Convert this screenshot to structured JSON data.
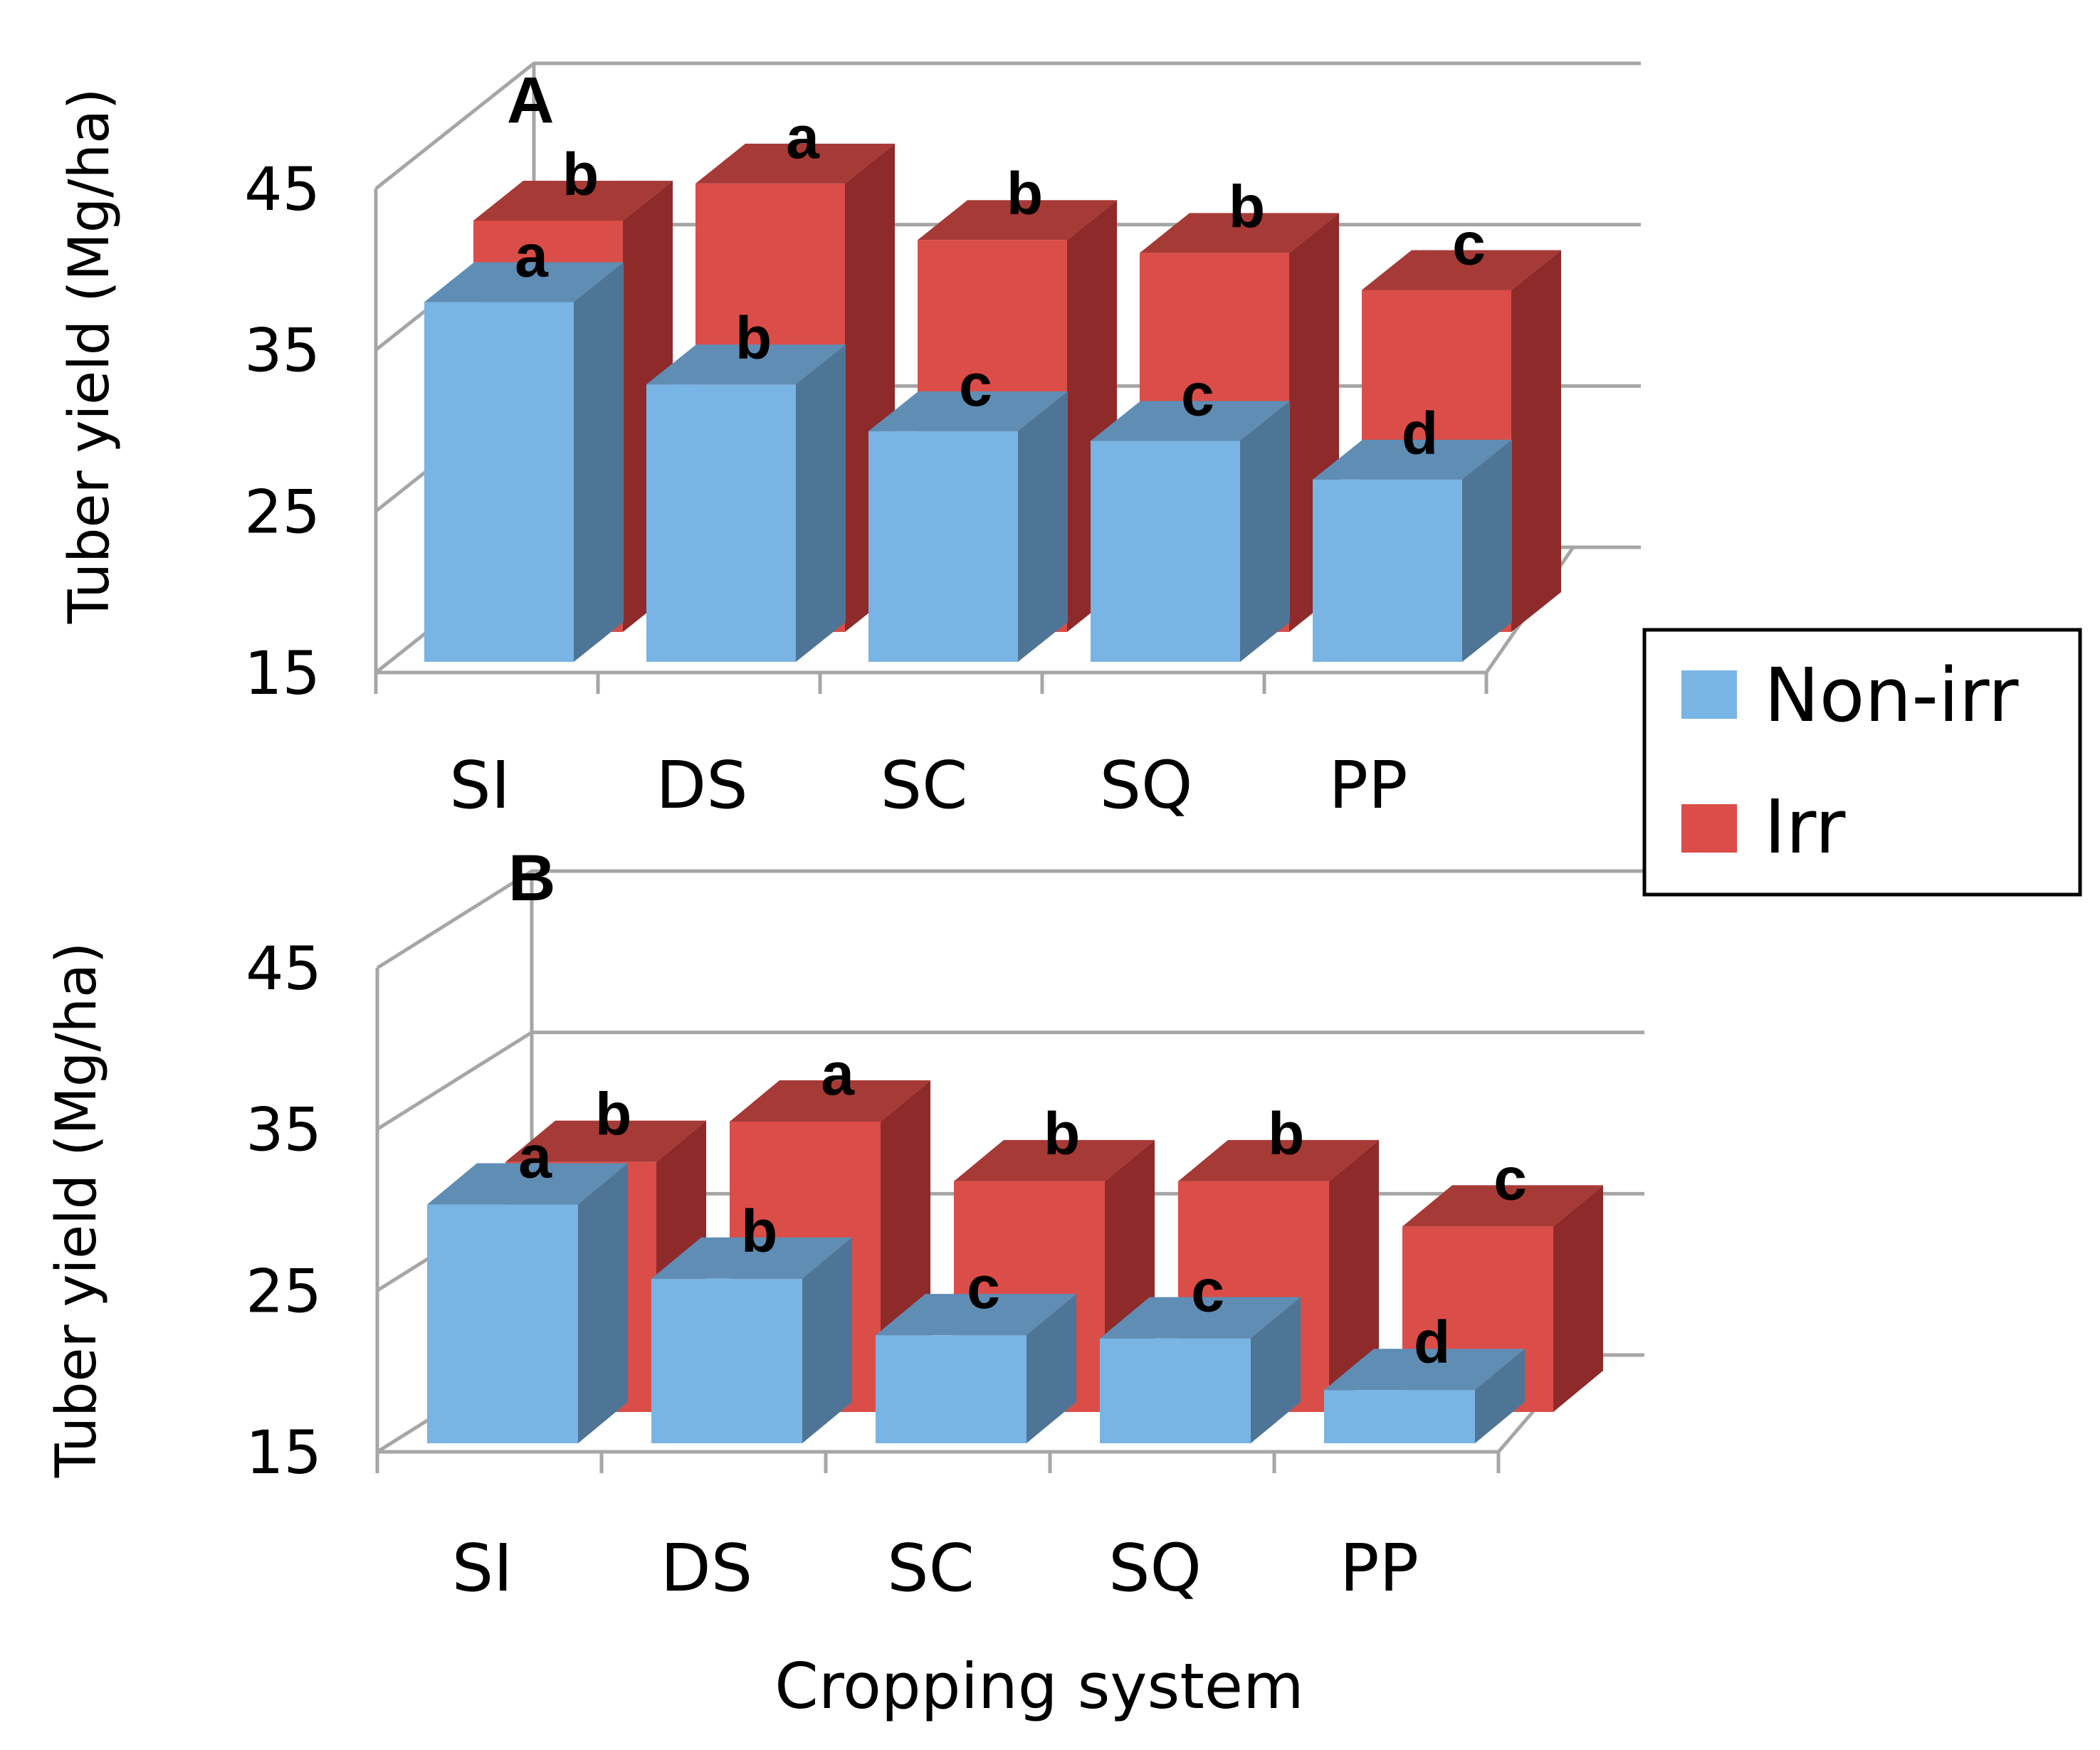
{
  "chart_data": [
    {
      "type": "bar",
      "panel_label": "A",
      "categories": [
        "SI",
        "DS",
        "SC",
        "SQ",
        "PP"
      ],
      "series": [
        {
          "name": "Non-irr",
          "values": [
            37.3,
            32.2,
            29.3,
            28.7,
            26.3
          ],
          "letters": [
            "a",
            "b",
            "c",
            "c",
            "d"
          ]
        },
        {
          "name": "Irr",
          "values": [
            40.5,
            42.8,
            39.3,
            38.5,
            36.2
          ],
          "letters": [
            "b",
            "a",
            "b",
            "b",
            "c"
          ]
        }
      ],
      "ylabel": "Tuber yield (Mg/ha)",
      "xlabel": "",
      "yticks": [
        "15",
        "25",
        "35",
        "45"
      ],
      "ylim": [
        15,
        45
      ]
    },
    {
      "type": "bar",
      "panel_label": "B",
      "categories": [
        "SI",
        "DS",
        "SC",
        "SQ",
        "PP"
      ],
      "series": [
        {
          "name": "Non-irr",
          "values": [
            29.8,
            25.2,
            21.7,
            21.5,
            18.3
          ],
          "letters": [
            "a",
            "b",
            "c",
            "c",
            "d"
          ]
        },
        {
          "name": "Irr",
          "values": [
            30.5,
            33.0,
            29.3,
            29.3,
            26.5
          ],
          "letters": [
            "b",
            "a",
            "b",
            "b",
            "c"
          ]
        }
      ],
      "ylabel": "Tuber yield (Mg/ha)",
      "xlabel": "Cropping system",
      "yticks": [
        "15",
        "25",
        "35",
        "45"
      ],
      "ylim": [
        15,
        45
      ]
    }
  ],
  "legend": {
    "items": [
      {
        "label": "Non-irr",
        "color": "#78b4e4"
      },
      {
        "label": "Irr",
        "color": "#db4d48"
      }
    ]
  },
  "colors": {
    "nonirr_front": "#78b4e4",
    "nonirr_side": "#4f7596",
    "nonirr_top": "#5f8db4",
    "irr_front": "#db4d48",
    "irr_side": "#8e2b2a",
    "irr_top": "#a63a37"
  }
}
